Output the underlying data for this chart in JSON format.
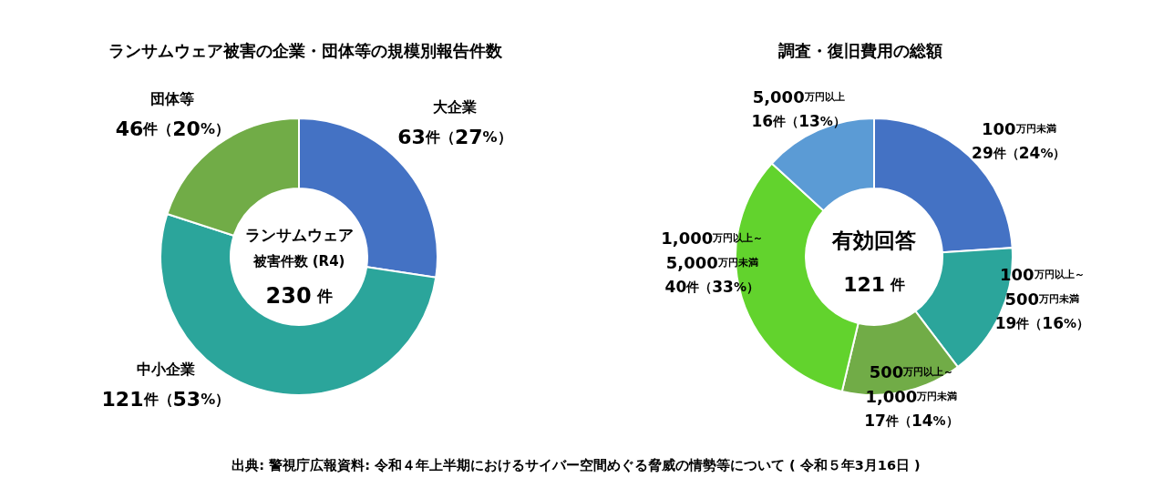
{
  "chart_data": [
    {
      "type": "donut",
      "title": "ランサムウェア被害の企業・団体等の規模別報告件数",
      "categories": [
        "大企業",
        "中小企業",
        "団体等"
      ],
      "values": [
        63,
        121,
        46
      ],
      "colors": [
        "#4472c4",
        "#2ba59b",
        "#71ac47"
      ],
      "value_labels": [
        "63件（27%）",
        "121件（53%）",
        "46件（20%）"
      ],
      "annotations": [
        "ランサムウェア",
        "被害件数 (R4)",
        "230 件"
      ]
    },
    {
      "type": "donut",
      "title": "調査・復旧費用の総額",
      "categories": [
        "100万円未満",
        "100万円以上～500万円未満",
        "500万円以上～1,000万円未満",
        "1,000万円以上～5,000万円未満",
        "5,000万円以上"
      ],
      "values": [
        29,
        19,
        17,
        40,
        16
      ],
      "colors": [
        "#4472c4",
        "#2ba59b",
        "#71ac47",
        "#62d32d",
        "#5b9bd5"
      ],
      "value_labels": [
        "29件（24%）",
        "19件（16%）",
        "17件（14%）",
        "40件（33%）",
        "16件（13%）"
      ],
      "annotations": [
        "有効回答",
        "121 件"
      ]
    },
    {
      "type": "other",
      "annotations": [
        "出典: 警視庁広報資料: 令和４年上半期におけるサイバー空間めぐる脅威の情勢等について ( 令和５年3月16日 )"
      ]
    }
  ]
}
